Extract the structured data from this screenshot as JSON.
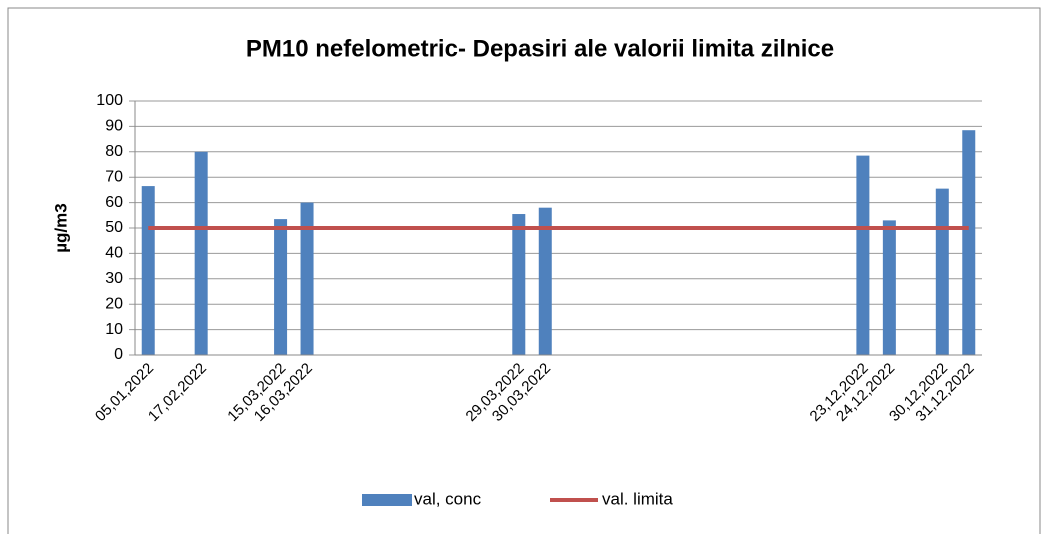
{
  "chart_data": {
    "type": "bar",
    "title": "PM10 nefelometric-   Depasiri ale valorii limita zilnice",
    "y_label": "µg/m3",
    "categories": [
      "05,01,2022",
      null,
      "17,02,2022",
      null,
      null,
      "15,03,2022",
      "16,03,2022",
      null,
      null,
      null,
      null,
      null,
      null,
      null,
      "29,03,2022",
      "30,03,2022",
      null,
      null,
      null,
      null,
      null,
      null,
      null,
      null,
      null,
      null,
      null,
      "23,12,2022",
      "24,12,2022",
      null,
      "30,12,2022",
      "31,12,2022"
    ],
    "series": [
      {
        "name": "val, conc",
        "type": "bar",
        "color": "#4f81bd",
        "values": [
          66.5,
          null,
          80,
          null,
          null,
          53.5,
          60,
          null,
          null,
          null,
          null,
          null,
          null,
          null,
          55.5,
          58,
          null,
          null,
          null,
          null,
          null,
          null,
          null,
          null,
          null,
          null,
          null,
          78.5,
          53,
          null,
          65.5,
          88.5
        ]
      },
      {
        "name": "val. limita",
        "type": "line",
        "color": "#c0504d",
        "values": [
          50,
          50,
          50,
          50,
          50,
          50,
          50,
          50,
          50,
          50,
          50,
          50,
          50,
          50,
          50,
          50,
          50,
          50,
          50,
          50,
          50,
          50,
          50,
          50,
          50,
          50,
          50,
          50,
          50,
          50,
          50,
          50
        ]
      }
    ],
    "ylim": [
      0,
      100
    ],
    "yticks": [
      0,
      10,
      20,
      30,
      40,
      50,
      60,
      70,
      80,
      90,
      100
    ],
    "grid": true,
    "legend": "bottom"
  }
}
